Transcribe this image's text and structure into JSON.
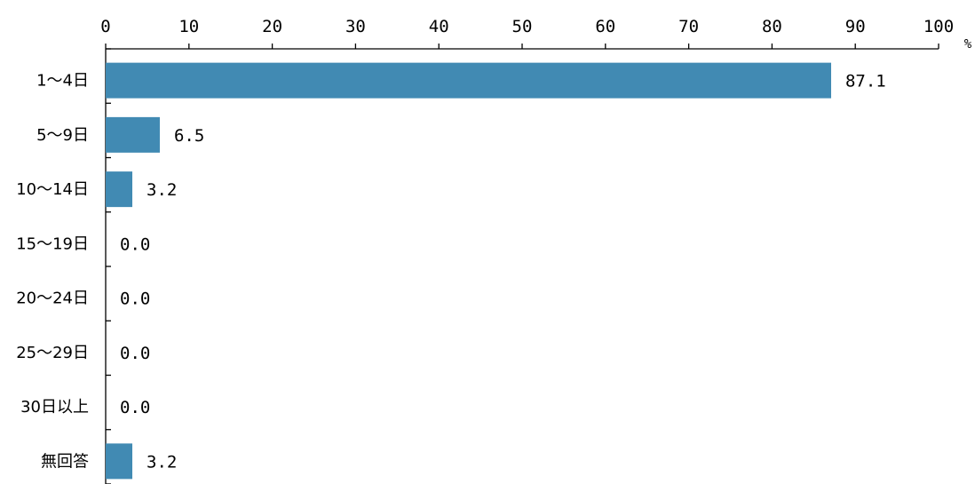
{
  "chart_data": {
    "type": "bar",
    "orientation": "horizontal",
    "title": "",
    "xlabel": "",
    "ylabel": "",
    "unit": "%",
    "xlim": [
      0,
      100
    ],
    "x_ticks": [
      "0",
      "10",
      "20",
      "30",
      "40",
      "50",
      "60",
      "70",
      "80",
      "90",
      "100"
    ],
    "categories": [
      "1～4日",
      "5～9日",
      "10～14日",
      "15～19日",
      "20～24日",
      "25～29日",
      "30日以上",
      "無回答"
    ],
    "values": [
      87.1,
      6.5,
      3.2,
      0.0,
      0.0,
      0.0,
      0.0,
      3.2
    ],
    "value_labels": [
      "87.1",
      "6.5",
      "3.2",
      "0.0",
      "0.0",
      "0.0",
      "0.0",
      "3.2"
    ],
    "grid": false,
    "legend": "none",
    "bar_color": "#418ab3"
  }
}
